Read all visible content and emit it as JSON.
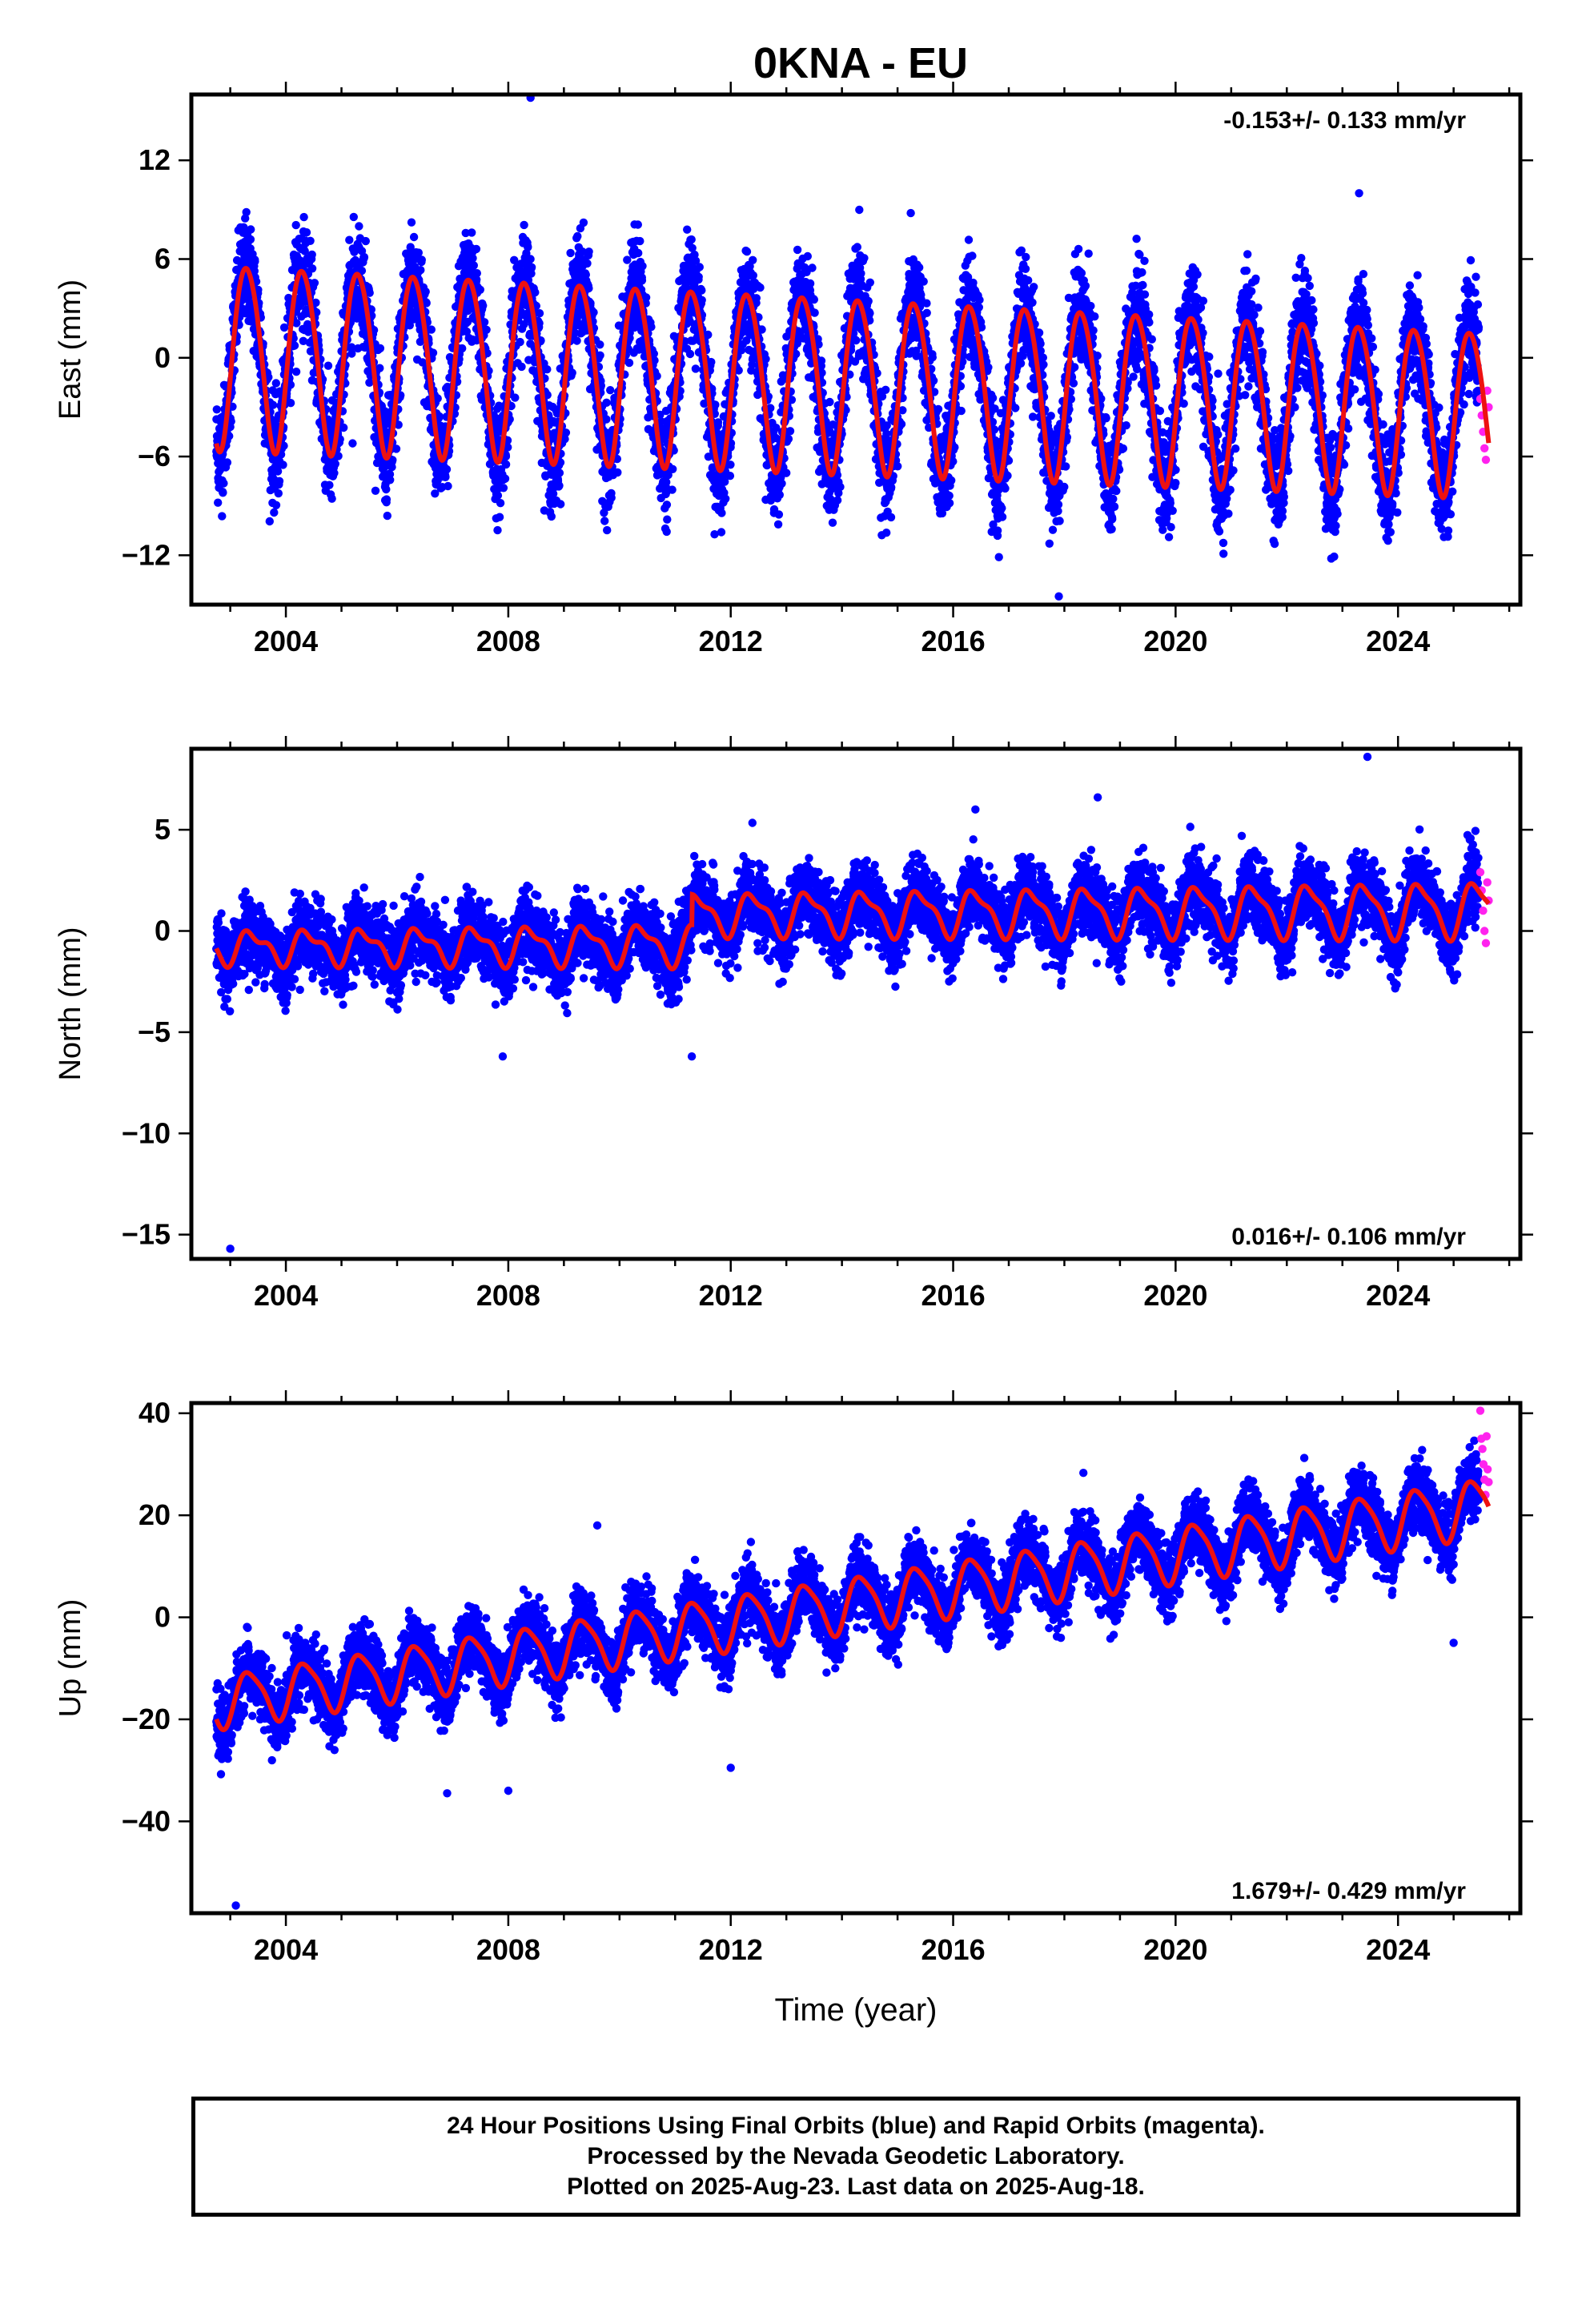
{
  "title": "0KNA - EU",
  "colors": {
    "final": "#0000ff",
    "rapid": "#ff22ee",
    "model": "#ee1111",
    "frame": "#000000"
  },
  "chart_data": [
    {
      "type": "scatter",
      "component": "East",
      "ylabel": "East (mm)",
      "xlabel": "",
      "rate_text": "-0.153+/- 0.133 mm/yr",
      "rate_position": "top-right",
      "xlim": [
        2002.3,
        2026.2
      ],
      "ylim": [
        -15,
        16
      ],
      "xticks": [
        2004,
        2008,
        2012,
        2016,
        2020,
        2024
      ],
      "yticks": [
        12,
        6,
        0,
        -6,
        -12
      ],
      "data_start": 2002.75,
      "data_end": 2025.45,
      "rapid_start": 2025.48,
      "rapid_end": 2025.63,
      "model": {
        "offset": 0.3,
        "rate": -0.153,
        "annual_amp": [
          5.6,
          5.0
        ],
        "semiannual_amp": [
          0.25,
          0.4
        ],
        "annual_phase": 2003.05,
        "step_year": 2011.3,
        "step": 0.0
      },
      "noise": 2.1,
      "outliers": [
        [
          2003.0,
          -4.2
        ],
        [
          2005.2,
          -5.2
        ],
        [
          2008.4,
          15.8
        ],
        [
          2013.0,
          -7.0
        ],
        [
          2017.9,
          -14.5
        ],
        [
          2022.8,
          -12.2
        ],
        [
          2023.3,
          10.0
        ],
        [
          2016.8,
          -10.5
        ]
      ],
      "rapid_values": [
        -2.5,
        -3.5,
        -4.5,
        -5.5,
        -6.2,
        -2.0,
        -3.0
      ]
    },
    {
      "type": "scatter",
      "component": "North",
      "ylabel": "North (mm)",
      "xlabel": "",
      "rate_text": "0.016+/- 0.106 mm/yr",
      "rate_position": "bottom-right",
      "xlim": [
        2002.3,
        2026.2
      ],
      "ylim": [
        -16.2,
        9
      ],
      "xticks": [
        2004,
        2008,
        2012,
        2016,
        2020,
        2024
      ],
      "yticks": [
        5,
        0,
        -5,
        -10,
        -15
      ],
      "data_start": 2002.75,
      "data_end": 2025.45,
      "rapid_start": 2025.48,
      "rapid_end": 2025.63,
      "model": {
        "offset": -0.8,
        "rate": 0.016,
        "annual_amp": [
          0.7,
          1.3
        ],
        "semiannual_amp": [
          0.3,
          0.2
        ],
        "annual_phase": 2003.15,
        "step_year": 2011.3,
        "step": 1.5
      },
      "noise": 1.15,
      "outliers": [
        [
          2003.0,
          -15.7
        ],
        [
          2023.45,
          8.6
        ],
        [
          2018.6,
          6.6
        ],
        [
          2011.3,
          -6.2
        ],
        [
          2007.9,
          -6.2
        ],
        [
          2016.4,
          6.0
        ]
      ],
      "rapid_values": [
        2.9,
        2.0,
        1.0,
        0.0,
        -0.6,
        2.4,
        1.5
      ]
    },
    {
      "type": "scatter",
      "component": "Up",
      "ylabel": "Up (mm)",
      "xlabel": "Time (year)",
      "rate_text": "1.679+/- 0.429 mm/yr",
      "rate_position": "bottom-right",
      "xlim": [
        2002.3,
        2026.2
      ],
      "ylim": [
        -58,
        42
      ],
      "xticks": [
        2004,
        2008,
        2012,
        2016,
        2020,
        2024
      ],
      "yticks": [
        40,
        20,
        0,
        -20,
        -40
      ],
      "data_start": 2002.75,
      "data_end": 2025.45,
      "rapid_start": 2025.48,
      "rapid_end": 2025.63,
      "model": {
        "offset": -16.5,
        "rate": 1.679,
        "annual_amp": [
          5.0,
          5.5
        ],
        "semiannual_amp": [
          0.8,
          0.6
        ],
        "annual_phase": 2003.1,
        "step_year": 2011.3,
        "step": 0.0
      },
      "noise": 4.3,
      "outliers": [
        [
          2003.1,
          -56.5
        ],
        [
          2012.0,
          -29.5
        ],
        [
          2009.6,
          18.0
        ],
        [
          2006.9,
          -34.5
        ],
        [
          2008.0,
          -34.0
        ],
        [
          2025.0,
          -5.0
        ]
      ],
      "rapid_values": [
        40.5,
        35.0,
        33.0,
        30.0,
        27.0,
        24.0,
        35.5,
        29.0,
        26.5
      ]
    }
  ],
  "footer": {
    "line1": "24 Hour Positions Using Final Orbits (blue) and Rapid Orbits (magenta).",
    "line2": "Processed by the Nevada Geodetic Laboratory.",
    "line3": "Plotted on 2025-Aug-23. Last data on 2025-Aug-18."
  }
}
